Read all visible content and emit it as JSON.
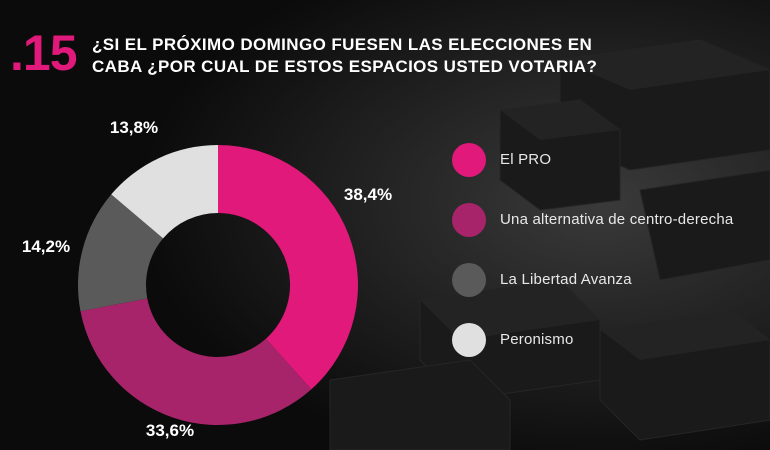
{
  "header": {
    "number": ".15",
    "title_line1": "¿SI EL PRÓXIMO DOMINGO FUESEN LAS ELECCIONES EN",
    "title_line2": "CABA ¿POR CUAL DE ESTOS ESPACIOS USTED VOTARIA?"
  },
  "legend": {
    "items": [
      {
        "label": "El PRO",
        "color": "#e0197a"
      },
      {
        "label": "Una alternativa de centro-derecha",
        "color": "#a8246a"
      },
      {
        "label": "La Libertad Avanza",
        "color": "#5a5a5a"
      },
      {
        "label": "Peronismo",
        "color": "#e0e0e0"
      }
    ]
  },
  "chart_data": {
    "type": "pie",
    "variant": "donut",
    "labels": [
      "El PRO",
      "Una alternativa de centro-derecha",
      "La Libertad Avanza",
      "Peronismo"
    ],
    "values": [
      38.4,
      33.6,
      14.2,
      13.8
    ],
    "value_labels": [
      "38,4%",
      "33,6%",
      "14,2%",
      "13,8%"
    ],
    "colors": [
      "#e0197a",
      "#a8246a",
      "#5a5a5a",
      "#e0e0e0"
    ],
    "start": "12 o'clock, clockwise",
    "legend_position": "right"
  }
}
